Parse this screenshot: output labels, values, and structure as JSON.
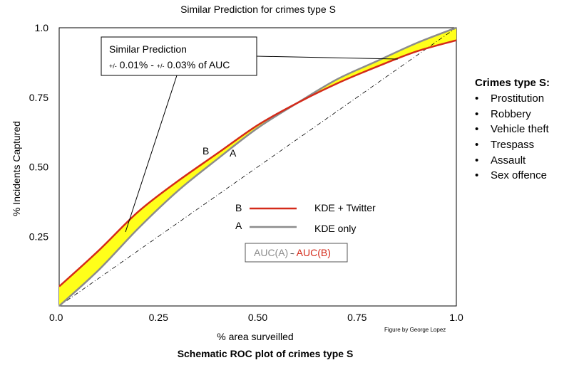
{
  "title": "Similar Prediction for crimes type S",
  "caption": "Schematic ROC plot of crimes type S",
  "credit": "Figure by George Lopez",
  "callout": {
    "line1": "Similar Prediction",
    "line2_pre": "+/-",
    "line2_a": " 0.01% - ",
    "line2_mid": "+/-",
    "line2_b": " 0.03% of AUC"
  },
  "point_labels": {
    "a": "A",
    "b": "B"
  },
  "legend": [
    {
      "marker": "B",
      "label": "KDE + Twitter",
      "color": "#d42a1a"
    },
    {
      "marker": "A",
      "label": "KDE only",
      "color": "#8c8c8c"
    }
  ],
  "auc_box": {
    "a": "AUC(A)",
    "sep": " ~ ",
    "b": "AUC(B)"
  },
  "sidebar": {
    "title": "Crimes type S:",
    "items": [
      "Prostitution",
      "Robbery",
      "Vehicle theft",
      "Trespass",
      "Assault",
      "Sex offence"
    ]
  },
  "colors": {
    "kde_twitter": "#d42a1a",
    "kde_only": "#8c8c8c",
    "band": "#ffff1a",
    "diagonal": "#000000"
  },
  "chart_data": {
    "type": "line",
    "xlabel": "% area surveilled",
    "ylabel": "% Incidents Captured",
    "xlim": [
      0,
      1
    ],
    "ylim": [
      0,
      1
    ],
    "x_ticks": [
      "0.0",
      "0.25",
      "0.50",
      "0.75",
      "1.0"
    ],
    "y_ticks": [
      "0.25",
      "0.50",
      "0.75",
      "1.0"
    ],
    "x_tick_values": [
      0,
      0.25,
      0.5,
      0.75,
      1
    ],
    "y_tick_values": [
      0.25,
      0.5,
      0.75,
      1
    ],
    "grid": false,
    "series": [
      {
        "name": "KDE + Twitter",
        "x": [
          0,
          0.1,
          0.2,
          0.3,
          0.4,
          0.5,
          0.6,
          0.7,
          0.8,
          0.9,
          1.0
        ],
        "y": [
          0.07,
          0.2,
          0.34,
          0.45,
          0.55,
          0.65,
          0.73,
          0.8,
          0.86,
          0.915,
          0.955
        ]
      },
      {
        "name": "KDE only",
        "x": [
          0,
          0.1,
          0.2,
          0.3,
          0.4,
          0.5,
          0.6,
          0.7,
          0.8,
          0.9,
          1.0
        ],
        "y": [
          0.0,
          0.13,
          0.28,
          0.415,
          0.53,
          0.64,
          0.73,
          0.815,
          0.88,
          0.945,
          1.0
        ]
      },
      {
        "x": [
          0,
          1
        ],
        "y": [
          0,
          1
        ],
        "style": "dash-dot"
      }
    ]
  }
}
